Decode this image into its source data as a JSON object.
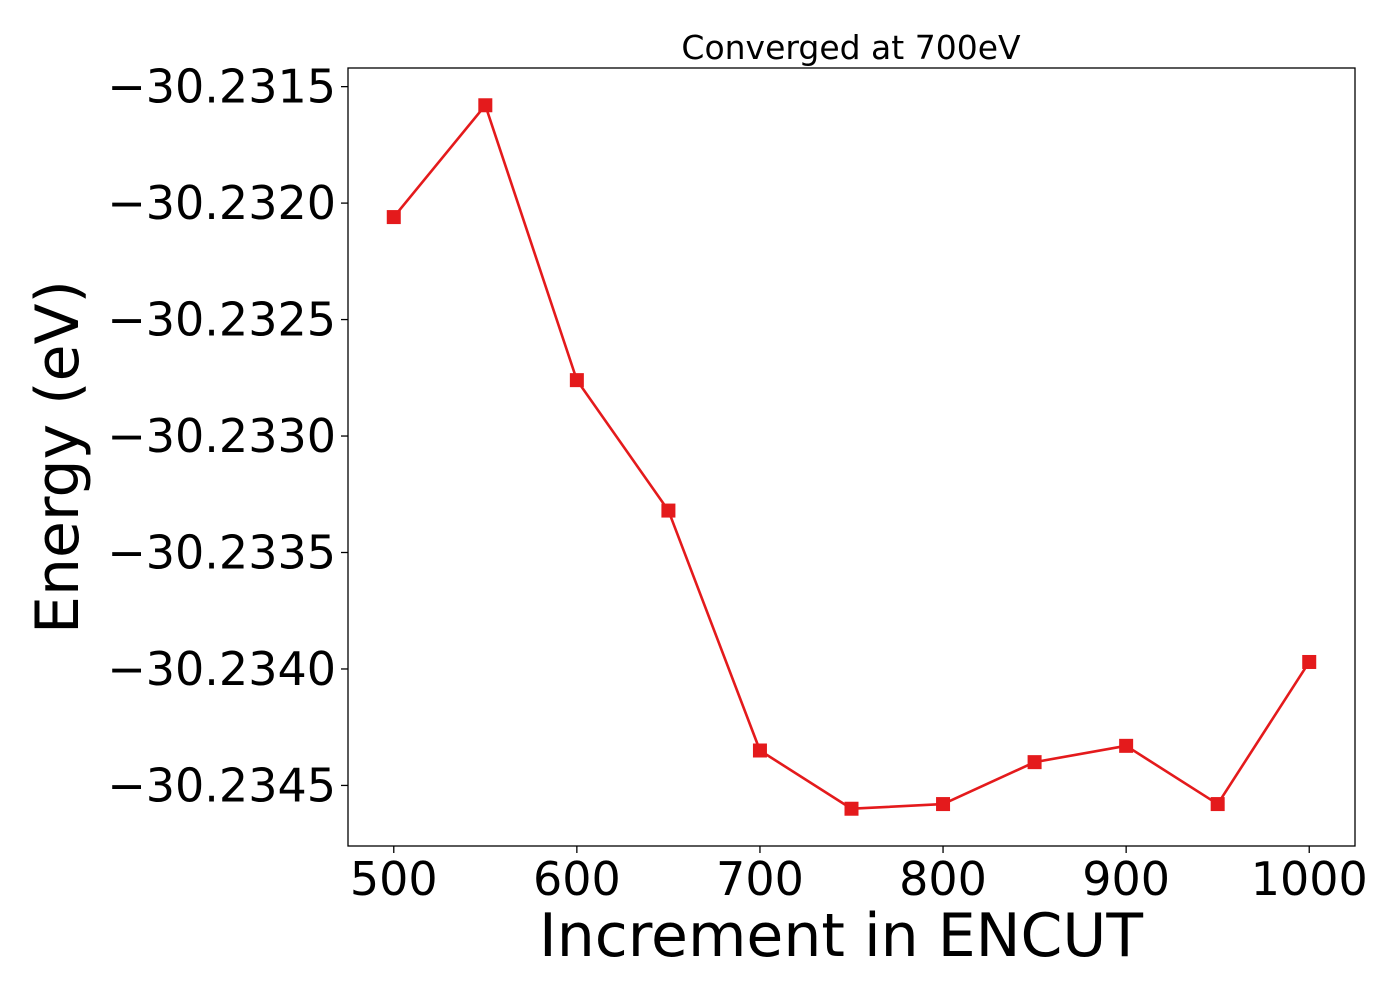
{
  "chart_data": {
    "type": "line",
    "title": "Converged at 700eV",
    "xlabel": "Increment in ENCUT",
    "ylabel": "Energy (eV)",
    "xlim": [
      475,
      1025
    ],
    "ylim": [
      -30.23476,
      -30.23142
    ],
    "xticks": [
      500,
      600,
      700,
      800,
      900,
      1000
    ],
    "yticks": [
      -30.2315,
      -30.232,
      -30.2325,
      -30.233,
      -30.2335,
      -30.234,
      -30.2345
    ],
    "ytick_labels": [
      "−30.2315",
      "−30.2320",
      "−30.2325",
      "−30.2330",
      "−30.2335",
      "−30.2340",
      "−30.2345"
    ],
    "grid": false,
    "series": [
      {
        "color": "#e41a1c",
        "marker": "square",
        "x": [
          500,
          550,
          600,
          650,
          700,
          750,
          800,
          850,
          900,
          950,
          1000
        ],
        "y": [
          -30.23206,
          -30.23158,
          -30.23276,
          -30.23332,
          -30.23435,
          -30.2346,
          -30.23458,
          -30.2344,
          -30.23433,
          -30.23458,
          -30.23397
        ]
      }
    ]
  }
}
